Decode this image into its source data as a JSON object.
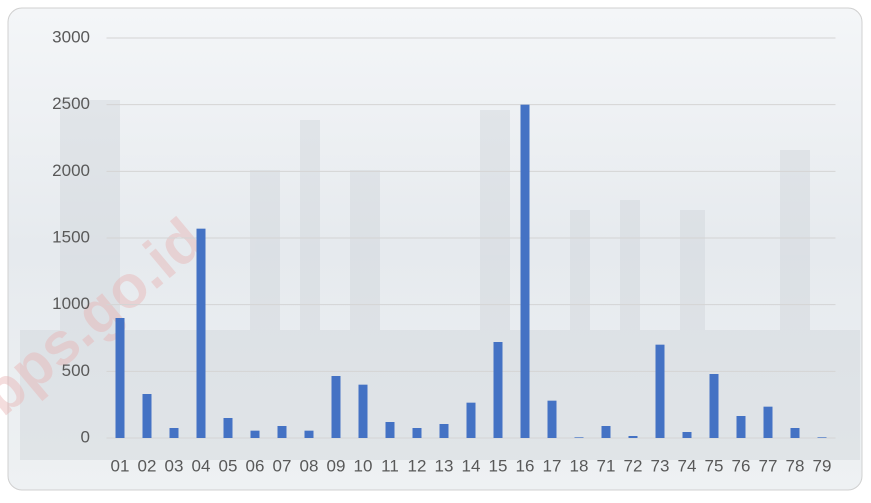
{
  "chart_data": {
    "type": "bar",
    "watermark": "bps.go.id",
    "categories": [
      "01",
      "02",
      "03",
      "04",
      "05",
      "06",
      "07",
      "08",
      "09",
      "10",
      "11",
      "12",
      "13",
      "14",
      "15",
      "16",
      "17",
      "18",
      "71",
      "72",
      "73",
      "74",
      "75",
      "76",
      "77",
      "78",
      "79"
    ],
    "values": [
      900,
      330,
      75,
      1570,
      150,
      55,
      90,
      55,
      465,
      400,
      120,
      75,
      105,
      265,
      720,
      2500,
      280,
      5,
      90,
      15,
      700,
      45,
      480,
      165,
      235,
      75,
      5
    ],
    "color": "#4472c4",
    "ylim": [
      0,
      3000
    ],
    "yticks": [
      0,
      500,
      1000,
      1500,
      2000,
      2500,
      3000
    ],
    "grid": true
  }
}
